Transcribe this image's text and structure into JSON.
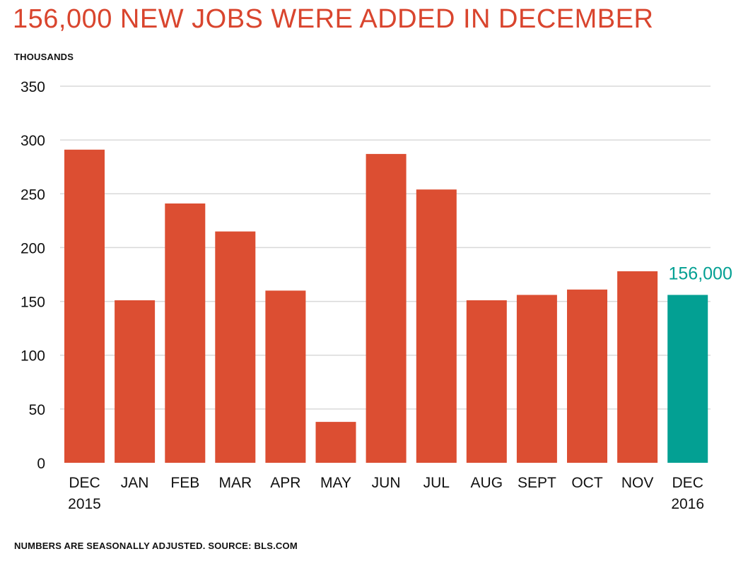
{
  "chart_data": {
    "type": "bar",
    "title": "156,000 NEW JOBS WERE ADDED IN DECEMBER",
    "ylabel": "THOUSANDS",
    "ylim": [
      0,
      350
    ],
    "yticks": [
      0,
      50,
      100,
      150,
      200,
      250,
      300,
      350
    ],
    "grid": true,
    "categories": [
      [
        "DEC",
        "2015"
      ],
      [
        "JAN"
      ],
      [
        "FEB"
      ],
      [
        "MAR"
      ],
      [
        "APR"
      ],
      [
        "MAY"
      ],
      [
        "JUN"
      ],
      [
        "JUL"
      ],
      [
        "AUG"
      ],
      [
        "SEPT"
      ],
      [
        "OCT"
      ],
      [
        "NOV"
      ],
      [
        "DEC",
        "2016"
      ]
    ],
    "values": [
      291,
      151,
      241,
      215,
      160,
      38,
      287,
      254,
      151,
      156,
      161,
      178,
      156
    ],
    "annotation": {
      "index": 12,
      "text": "156,000"
    },
    "colors": {
      "bar": "#dc4e32",
      "highlight": "#03a093",
      "title": "#d9452e",
      "grid": "#d9d9d9"
    },
    "footnote": "NUMBERS ARE SEASONALLY ADJUSTED. SOURCE: BLS.COM"
  }
}
